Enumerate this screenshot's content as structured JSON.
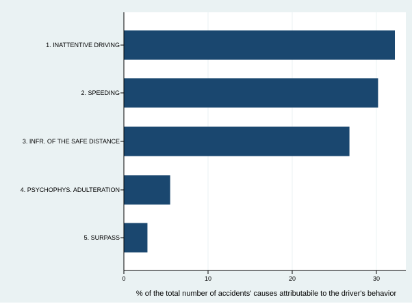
{
  "chart_data": {
    "type": "bar",
    "orientation": "horizontal",
    "categories": [
      "1. INATTENTIVE DRIVING",
      "2. SPEEDING",
      "3. INFR. OF THE SAFE DISTANCE",
      "4. PSYCHOPHYS. ADULTERATION",
      "5. SURPASS"
    ],
    "values": [
      32.2,
      30.2,
      26.8,
      5.5,
      2.8
    ],
    "xlabel": "% of the total number of accidents' causes attributabile to the driver's behavior",
    "ylabel": "",
    "title": "",
    "xlim": [
      0,
      33.5
    ],
    "xticks": [
      0,
      10,
      20,
      30
    ],
    "xtick_labels": [
      "0",
      "10",
      "20",
      "30"
    ],
    "grid": "vertical",
    "legend": "none",
    "colors": {
      "bar": "#1a476f",
      "outer_background": "#eaf2f3",
      "plot_background": "#ffffff",
      "grid": "#eaf2f3",
      "axis": "#000000"
    }
  }
}
